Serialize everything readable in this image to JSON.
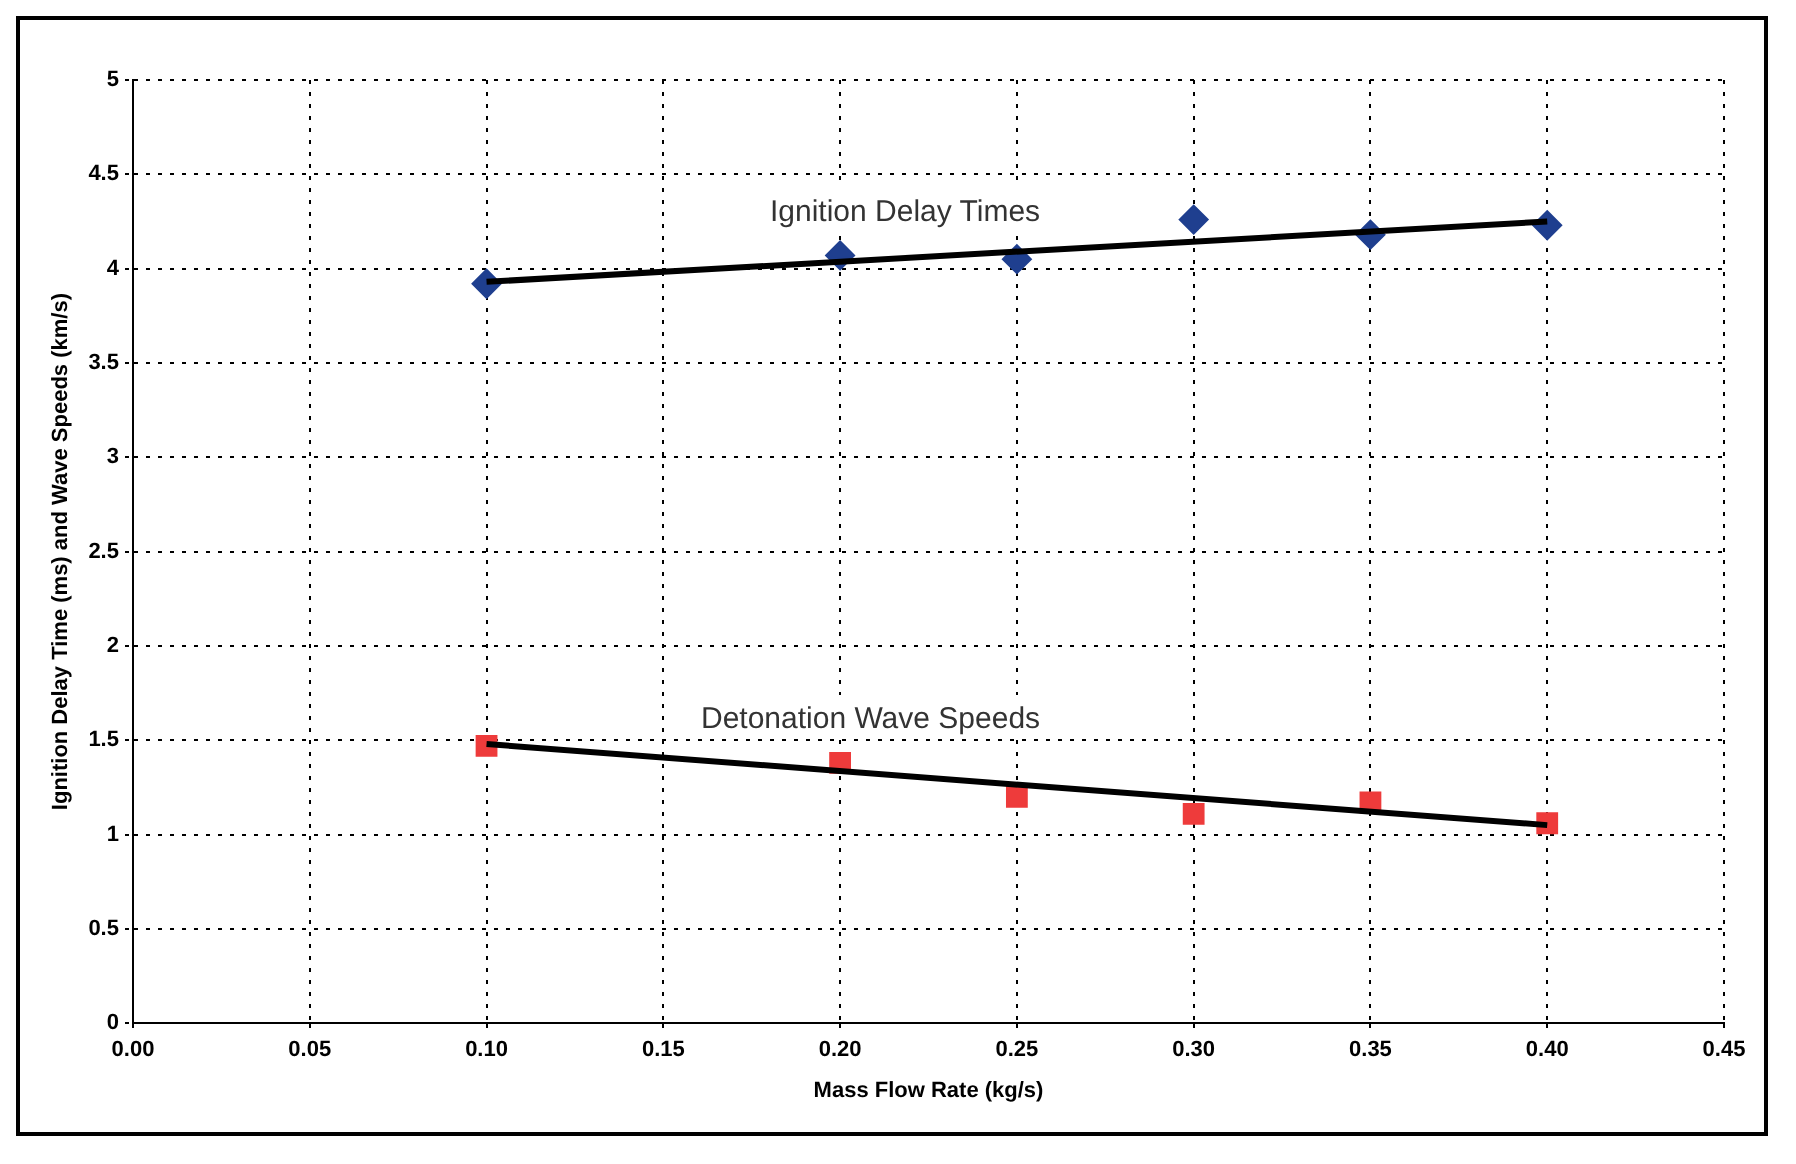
{
  "chart_data": {
    "type": "scatter",
    "xlabel": "Mass Flow Rate (kg/s)",
    "ylabel": "Ignition Delay Time (ms) and Wave Speeds (km/s)",
    "xlim": [
      0,
      0.45
    ],
    "xticks": [
      {
        "value": 0,
        "label": "0.00"
      },
      {
        "value": 0.05,
        "label": "0.05"
      },
      {
        "value": 0.1,
        "label": "0.10"
      },
      {
        "value": 0.15,
        "label": "0.15"
      },
      {
        "value": 0.2,
        "label": "0.20"
      },
      {
        "value": 0.25,
        "label": "0.25"
      },
      {
        "value": 0.3,
        "label": "0.30"
      },
      {
        "value": 0.35,
        "label": "0.35"
      },
      {
        "value": 0.4,
        "label": "0.40"
      },
      {
        "value": 0.45,
        "label": "0.45"
      }
    ],
    "ylim": [
      0,
      5
    ],
    "yticks": [
      0,
      0.5,
      1,
      1.5,
      2,
      2.5,
      3,
      3.5,
      4,
      4.5,
      5
    ],
    "grid": true,
    "legend": false,
    "series": [
      {
        "name": "Ignition Delay Times",
        "marker": "diamond",
        "color": "#1f3f8f",
        "x": [
          0.1,
          0.2,
          0.25,
          0.3,
          0.35,
          0.4
        ],
        "values": [
          3.92,
          4.07,
          4.05,
          4.26,
          4.18,
          4.23
        ]
      },
      {
        "name": "Detonation Wave Speeds",
        "marker": "square",
        "color": "#ee3b3b",
        "x": [
          0.1,
          0.2,
          0.25,
          0.3,
          0.35,
          0.4
        ],
        "values": [
          1.47,
          1.38,
          1.2,
          1.11,
          1.17,
          1.06
        ]
      },
      {
        "type": "line",
        "marker": "none",
        "color": "#000000",
        "x": [
          0.1,
          0.4
        ],
        "values": [
          3.93,
          4.25
        ]
      },
      {
        "type": "line",
        "marker": "none",
        "color": "#000000",
        "x": [
          0.1,
          0.4
        ],
        "values": [
          1.48,
          1.05
        ]
      }
    ]
  }
}
